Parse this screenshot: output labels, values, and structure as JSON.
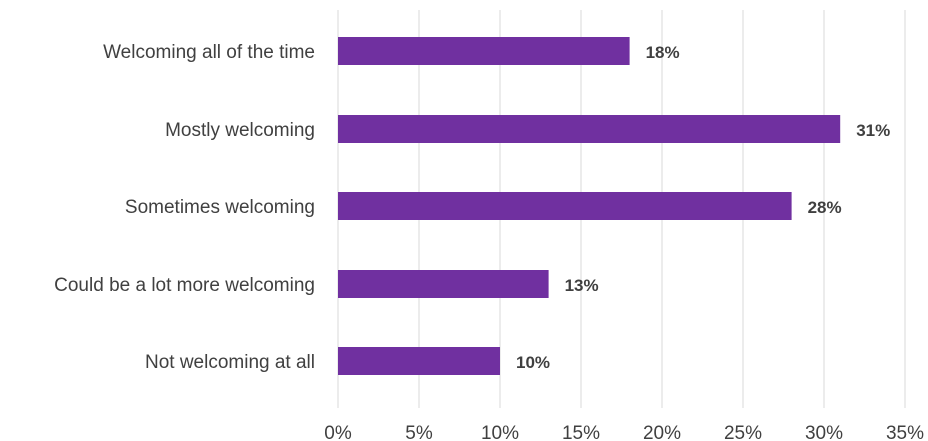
{
  "chart_data": {
    "type": "bar",
    "orientation": "horizontal",
    "categories": [
      "Welcoming all of the time",
      "Mostly welcoming",
      "Sometimes welcoming",
      "Could be a lot more welcoming",
      "Not welcoming at all"
    ],
    "values": [
      18,
      31,
      28,
      13,
      10
    ],
    "data_labels": [
      "18%",
      "31%",
      "28%",
      "13%",
      "10%"
    ],
    "x_ticks": [
      "0%",
      "5%",
      "10%",
      "15%",
      "20%",
      "25%",
      "30%",
      "35%"
    ],
    "xlim": [
      0,
      35
    ],
    "grid": true,
    "bar_color": "#7030a0"
  }
}
